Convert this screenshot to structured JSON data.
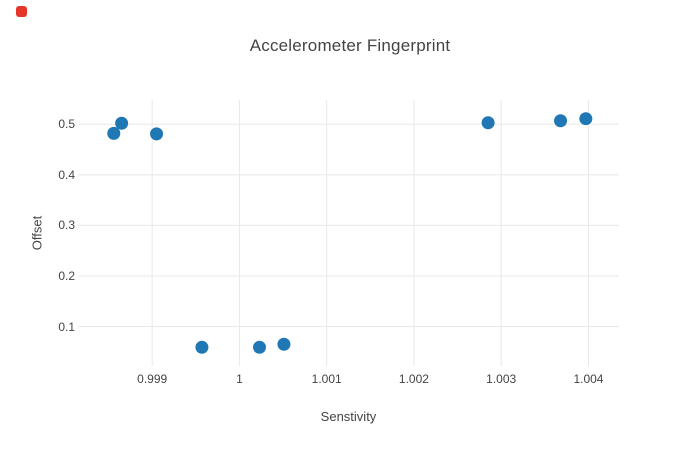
{
  "window": {
    "background": "#ffffff",
    "record_indicator_color": "#e5352b"
  },
  "chart_data": {
    "type": "scatter",
    "title": "Accelerometer Fingerprint",
    "xlabel": "Senstivity",
    "ylabel": "Offset",
    "xlim": [
      0.99815,
      1.00435
    ],
    "ylim": [
      0.022,
      0.548
    ],
    "x_ticks": [
      0.999,
      1.0,
      1.001,
      1.002,
      1.003,
      1.004
    ],
    "x_tick_labels": [
      "0.999",
      "1",
      "1.001",
      "1.002",
      "1.003",
      "1.004"
    ],
    "y_ticks": [
      0.1,
      0.2,
      0.3,
      0.4,
      0.5
    ],
    "y_tick_labels": [
      "0.1",
      "0.2",
      "0.3",
      "0.4",
      "0.5"
    ],
    "grid": true,
    "legend": "none",
    "marker": {
      "color": "#1f77b4",
      "radius": 6.5
    },
    "grid_color": "#e8e8e8",
    "text_color": "#444444",
    "points": [
      {
        "x": 0.99856,
        "y": 0.482
      },
      {
        "x": 0.99865,
        "y": 0.502
      },
      {
        "x": 0.99905,
        "y": 0.481
      },
      {
        "x": 0.99957,
        "y": 0.059
      },
      {
        "x": 1.00023,
        "y": 0.059
      },
      {
        "x": 1.00051,
        "y": 0.065
      },
      {
        "x": 1.00285,
        "y": 0.503
      },
      {
        "x": 1.00368,
        "y": 0.507
      },
      {
        "x": 1.00397,
        "y": 0.511
      }
    ]
  }
}
